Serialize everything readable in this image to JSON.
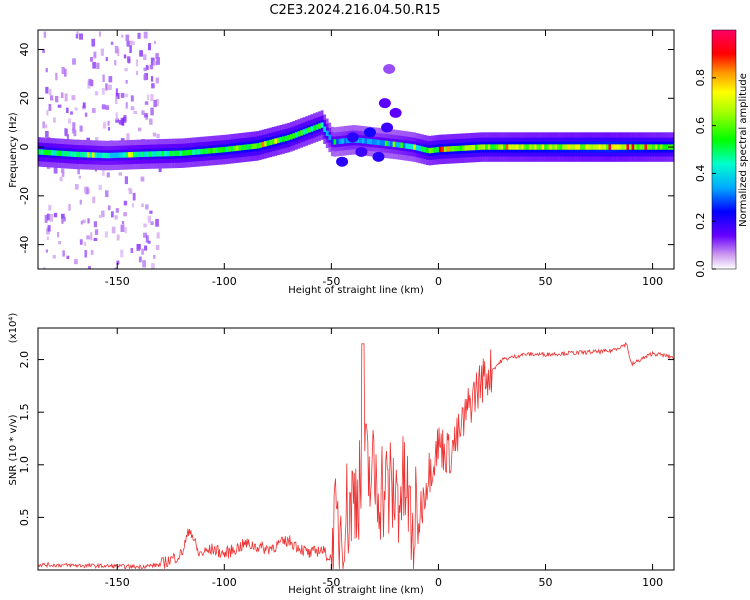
{
  "title": "C2E3.2024.216.04.50.R15",
  "chart_data": [
    {
      "type": "heatmap",
      "xlabel": "Height of straight line (km)",
      "ylabel": "Frequency (Hz)",
      "xlim": [
        -187,
        110
      ],
      "ylim": [
        -50,
        48
      ],
      "x_ticks": [
        -150,
        -100,
        -50,
        0,
        50,
        100
      ],
      "y_ticks": [
        -40,
        -20,
        0,
        20,
        40
      ],
      "colorbar": {
        "label": "Normalized spectral amplitude",
        "range": [
          0.0,
          1.0
        ],
        "ticks": [
          0.0,
          0.2,
          0.4,
          0.6,
          0.8
        ]
      },
      "ridge": {
        "x": [
          -187,
          -170,
          -155,
          -140,
          -120,
          -100,
          -85,
          -70,
          -55,
          -50,
          -40,
          -30,
          -20,
          -12,
          -5,
          0,
          20,
          50,
          80,
          110
        ],
        "freq": [
          -2,
          -3,
          -3.5,
          -3,
          -2.5,
          -1,
          0.5,
          4,
          9,
          2,
          3,
          2,
          1,
          0,
          -1.5,
          -1,
          0,
          0,
          0,
          0
        ],
        "amplitude": [
          0.5,
          0.45,
          0.4,
          0.45,
          0.5,
          0.55,
          0.6,
          0.55,
          0.5,
          0.3,
          0.35,
          0.3,
          0.35,
          0.4,
          0.55,
          0.6,
          0.6,
          0.65,
          0.7,
          0.6
        ]
      },
      "scatter_blobs": [
        {
          "x": -40,
          "freq": 4,
          "amp": 0.2
        },
        {
          "x": -36,
          "freq": -2,
          "amp": 0.18
        },
        {
          "x": -32,
          "freq": 6,
          "amp": 0.22
        },
        {
          "x": -28,
          "freq": -4,
          "amp": 0.2
        },
        {
          "x": -24,
          "freq": 8,
          "amp": 0.18
        },
        {
          "x": -45,
          "freq": -6,
          "amp": 0.2
        },
        {
          "x": -20,
          "freq": 14,
          "amp": 0.15
        },
        {
          "x": -25,
          "freq": 18,
          "amp": 0.15
        },
        {
          "x": -23,
          "freq": 32,
          "amp": 0.1
        }
      ]
    },
    {
      "type": "line",
      "xlabel": "Height of straight line (km)",
      "ylabel": "SNR (10 * v/v)",
      "y_multiplier": "(x10⁴)",
      "xlim": [
        -187,
        110
      ],
      "ylim": [
        0,
        2.3
      ],
      "x_ticks": [
        -150,
        -100,
        -50,
        0,
        50,
        100
      ],
      "y_ticks": [
        0.5,
        1.0,
        1.5,
        2.0
      ],
      "series": [
        {
          "color": "#ee3333",
          "x": [
            -187,
            -160,
            -140,
            -130,
            -120,
            -116,
            -112,
            -105,
            -100,
            -90,
            -80,
            -70,
            -60,
            -55,
            -50,
            -45,
            -40,
            -35,
            -30,
            -25,
            -20,
            -15,
            -12,
            -8,
            -5,
            0,
            5,
            10,
            15,
            20,
            25,
            30,
            40,
            50,
            60,
            70,
            80,
            88,
            90,
            100,
            110
          ],
          "y": [
            0.05,
            0.04,
            0.03,
            0.05,
            0.15,
            0.4,
            0.15,
            0.2,
            0.15,
            0.25,
            0.2,
            0.28,
            0.15,
            0.2,
            0.1,
            0.3,
            0.5,
            0.8,
            0.7,
            0.6,
            0.55,
            0.6,
            0.1,
            0.6,
            0.9,
            1.2,
            1.1,
            1.3,
            1.6,
            1.8,
            1.9,
            2.0,
            2.05,
            2.05,
            2.06,
            2.07,
            2.08,
            2.15,
            1.95,
            2.06,
            2.02
          ]
        }
      ]
    }
  ]
}
